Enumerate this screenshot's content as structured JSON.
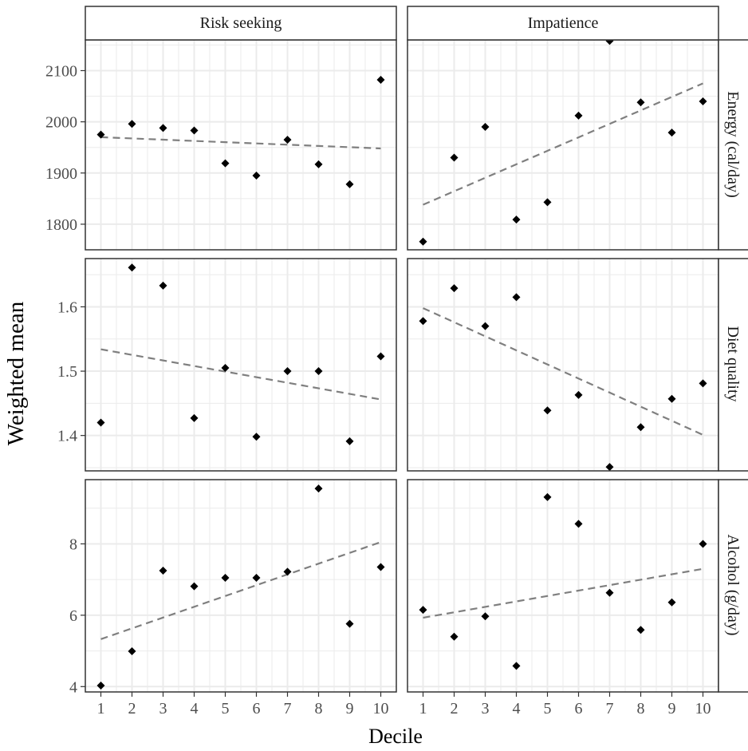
{
  "figure": {
    "xlabel": "Decile",
    "ylabel": "Weighted mean",
    "column_strips": [
      "Risk seeking",
      "Impatience"
    ],
    "row_strips": [
      "Energy (cal/day)",
      "Diet quality",
      "Alcohol (g/day)"
    ]
  },
  "colors": {
    "point": "#000000",
    "trend_line": "#7f7f7f",
    "grid": "#ebebeb",
    "strip_fill": "#ffffff",
    "panel_border": "#333333"
  },
  "chart_data": [
    {
      "type": "scatter",
      "panel": "Risk seeking / Energy (cal/day)",
      "column": "Risk seeking",
      "row": "Energy (cal/day)",
      "x": [
        1,
        2,
        3,
        4,
        5,
        6,
        7,
        8,
        9,
        10
      ],
      "y": [
        1975,
        1996,
        1988,
        1983,
        1919,
        1895,
        1965,
        1917,
        1878,
        2082
      ],
      "trend": [
        1970,
        1948
      ],
      "ylim": [
        1750,
        2160
      ],
      "yticks": [
        1800,
        1900,
        2000,
        2100
      ],
      "xlim": [
        0.5,
        10.5
      ],
      "xticks": [
        1,
        2,
        3,
        4,
        5,
        6,
        7,
        8,
        9,
        10
      ],
      "grid": true
    },
    {
      "type": "scatter",
      "panel": "Impatience / Energy (cal/day)",
      "column": "Impatience",
      "row": "Energy (cal/day)",
      "x": [
        1,
        2,
        3,
        4,
        5,
        6,
        7,
        8,
        9,
        10
      ],
      "y": [
        1766,
        1930,
        1990,
        1809,
        1843,
        2012,
        2158,
        2038,
        1979,
        2040
      ],
      "trend": [
        1838,
        2075
      ],
      "ylim": [
        1750,
        2160
      ],
      "yticks": [
        1800,
        1900,
        2000,
        2100
      ],
      "xlim": [
        0.5,
        10.5
      ],
      "xticks": [
        1,
        2,
        3,
        4,
        5,
        6,
        7,
        8,
        9,
        10
      ],
      "grid": true
    },
    {
      "type": "scatter",
      "panel": "Risk seeking / Diet quality",
      "column": "Risk seeking",
      "row": "Diet quality",
      "x": [
        1,
        2,
        3,
        4,
        5,
        6,
        7,
        8,
        9,
        10
      ],
      "y": [
        1.42,
        1.661,
        1.633,
        1.427,
        1.505,
        1.398,
        1.5,
        1.5,
        1.391,
        1.523
      ],
      "trend": [
        1.534,
        1.456
      ],
      "ylim": [
        1.345,
        1.675
      ],
      "yticks": [
        1.4,
        1.5,
        1.6
      ],
      "xlim": [
        0.5,
        10.5
      ],
      "xticks": [
        1,
        2,
        3,
        4,
        5,
        6,
        7,
        8,
        9,
        10
      ],
      "grid": true
    },
    {
      "type": "scatter",
      "panel": "Impatience / Diet quality",
      "column": "Impatience",
      "row": "Diet quality",
      "x": [
        1,
        2,
        3,
        4,
        5,
        6,
        7,
        8,
        9,
        10
      ],
      "y": [
        1.578,
        1.629,
        1.57,
        1.615,
        1.439,
        1.463,
        1.351,
        1.413,
        1.457,
        1.481
      ],
      "trend": [
        1.598,
        1.401
      ],
      "ylim": [
        1.345,
        1.675
      ],
      "yticks": [
        1.4,
        1.5,
        1.6
      ],
      "xlim": [
        0.5,
        10.5
      ],
      "xticks": [
        1,
        2,
        3,
        4,
        5,
        6,
        7,
        8,
        9,
        10
      ],
      "grid": true
    },
    {
      "type": "scatter",
      "panel": "Risk seeking / Alcohol (g/day)",
      "column": "Risk seeking",
      "row": "Alcohol (g/day)",
      "x": [
        1,
        2,
        3,
        4,
        5,
        6,
        7,
        8,
        9,
        10
      ],
      "y": [
        4.03,
        4.99,
        7.25,
        6.81,
        7.05,
        7.05,
        7.22,
        9.55,
        5.76,
        7.35
      ],
      "trend": [
        5.33,
        8.05
      ],
      "ylim": [
        3.85,
        9.8
      ],
      "yticks": [
        4,
        6,
        8
      ],
      "xlim": [
        0.5,
        10.5
      ],
      "xticks": [
        1,
        2,
        3,
        4,
        5,
        6,
        7,
        8,
        9,
        10
      ],
      "grid": true
    },
    {
      "type": "scatter",
      "panel": "Impatience / Alcohol (g/day)",
      "column": "Impatience",
      "row": "Alcohol (g/day)",
      "x": [
        1,
        2,
        3,
        4,
        5,
        6,
        7,
        8,
        9,
        10
      ],
      "y": [
        6.15,
        5.4,
        5.97,
        4.58,
        9.31,
        8.56,
        6.63,
        5.59,
        6.36,
        8.0
      ],
      "trend": [
        5.93,
        7.3
      ],
      "ylim": [
        3.85,
        9.8
      ],
      "yticks": [
        4,
        6,
        8
      ],
      "xlim": [
        0.5,
        10.5
      ],
      "xticks": [
        1,
        2,
        3,
        4,
        5,
        6,
        7,
        8,
        9,
        10
      ],
      "grid": true
    }
  ]
}
